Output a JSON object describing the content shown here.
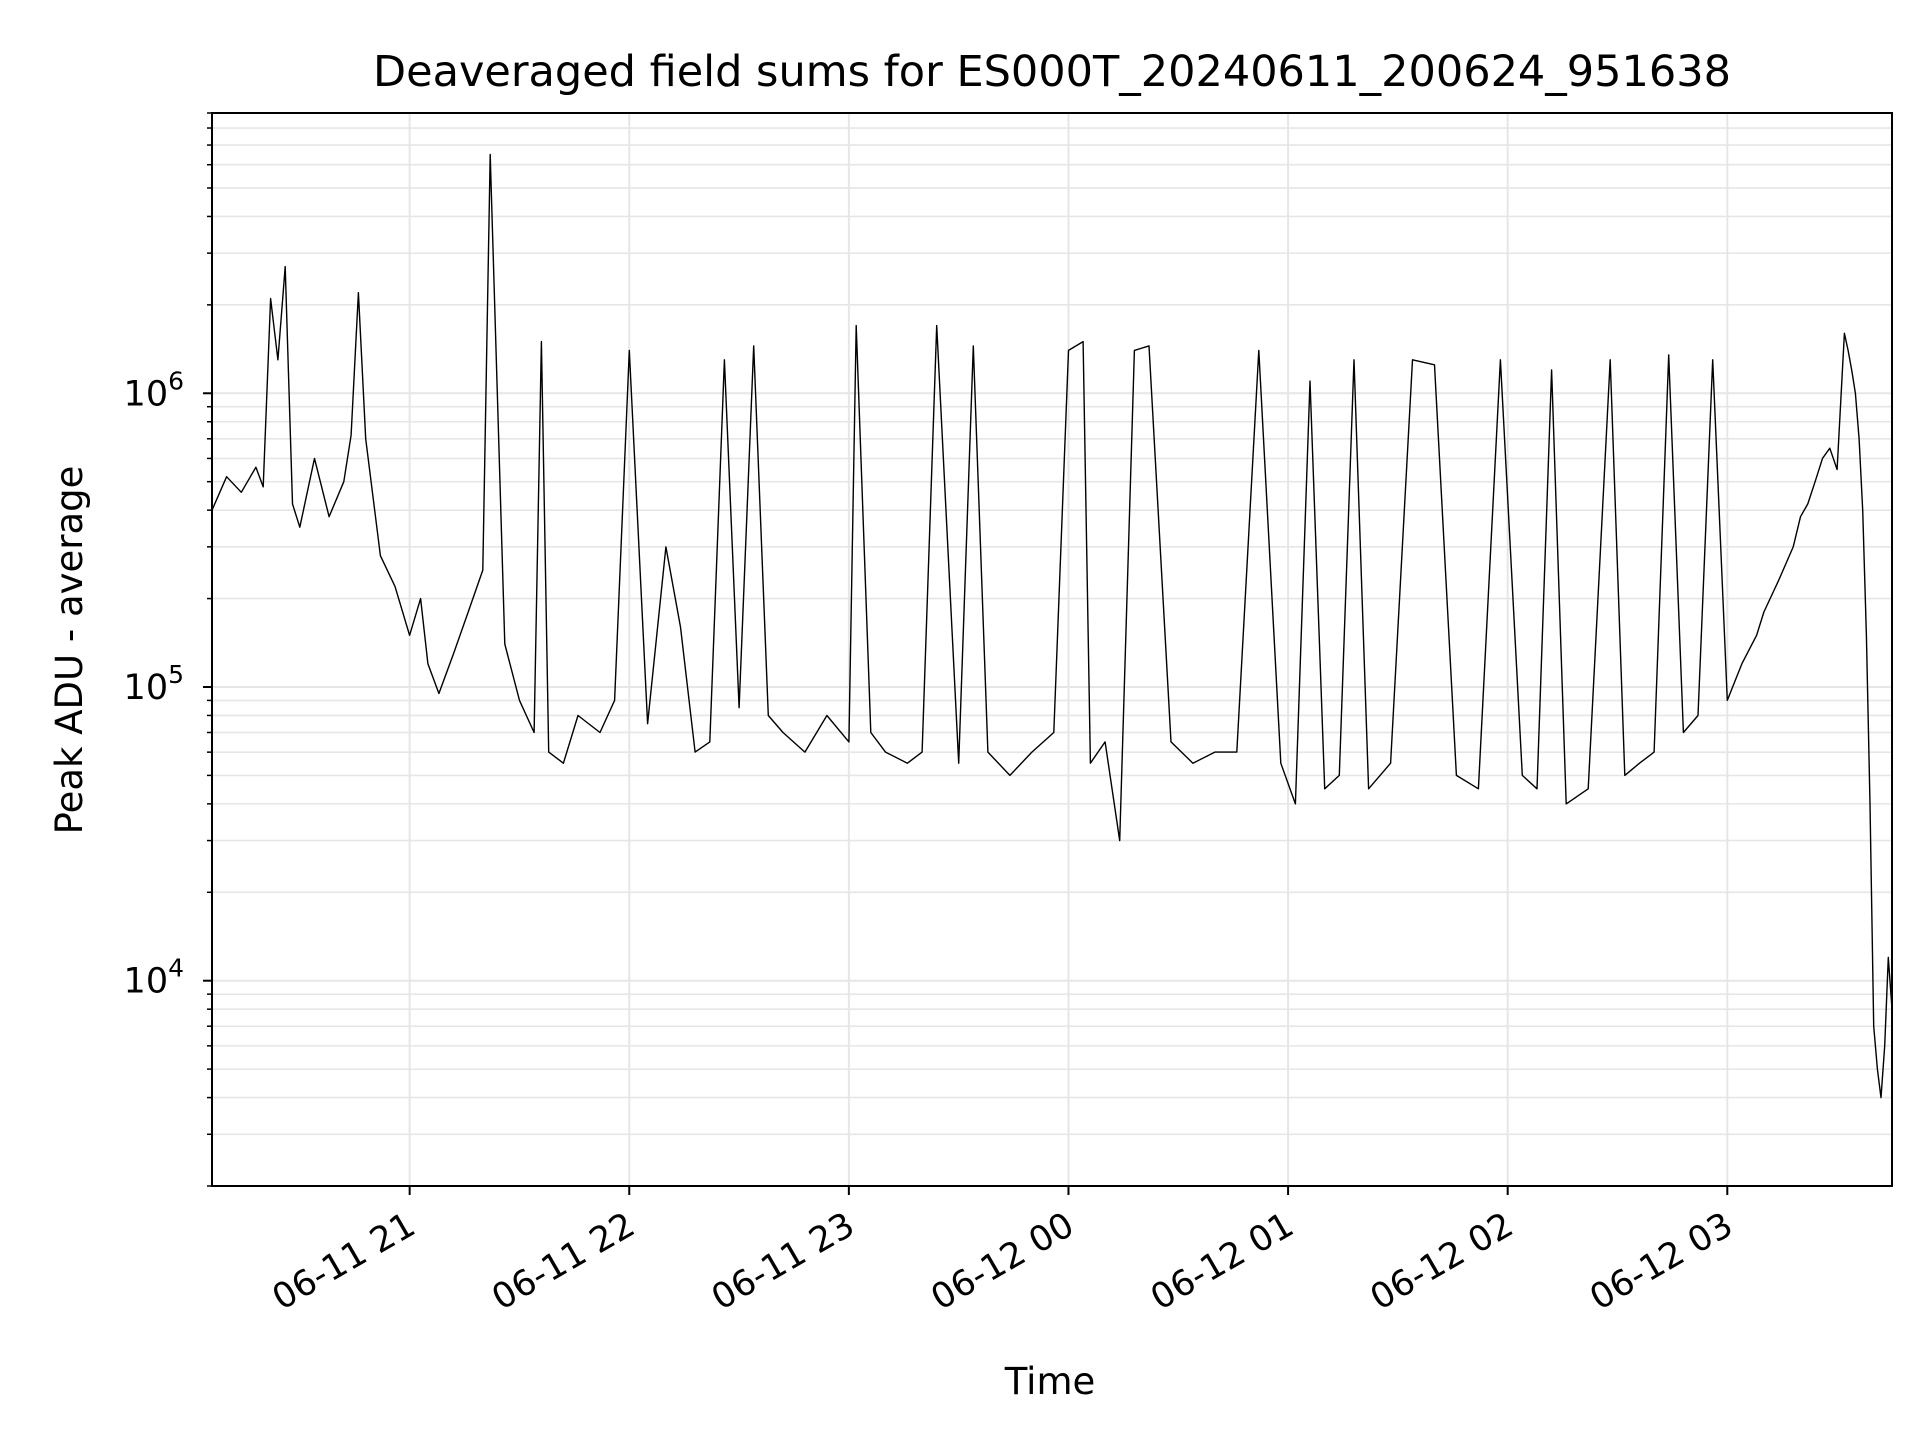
{
  "chart_data": {
    "type": "line",
    "title": "Deaveraged field sums for ES000T_20240611_200624_951638",
    "xlabel": "Time",
    "ylabel": "Peak ADU - average",
    "yscale": "log",
    "grid": true,
    "grid_color": "#e6e6e6",
    "line_color": "#000000",
    "xlim": [
      "2024-06-11 20:06",
      "2024-06-12 03:45"
    ],
    "ylim": [
      2000,
      9000000
    ],
    "x_ticks": [
      {
        "value": "2024-06-11 21:00",
        "label": "06-11 21"
      },
      {
        "value": "2024-06-11 22:00",
        "label": "06-11 22"
      },
      {
        "value": "2024-06-11 23:00",
        "label": "06-11 23"
      },
      {
        "value": "2024-06-12 00:00",
        "label": "06-12 00"
      },
      {
        "value": "2024-06-12 01:00",
        "label": "06-12 01"
      },
      {
        "value": "2024-06-12 02:00",
        "label": "06-12 02"
      },
      {
        "value": "2024-06-12 03:00",
        "label": "06-12 03"
      }
    ],
    "y_ticks": [
      {
        "value": 10000,
        "base": "10",
        "exp": "4"
      },
      {
        "value": 100000,
        "base": "10",
        "exp": "5"
      },
      {
        "value": 1000000,
        "base": "10",
        "exp": "6"
      }
    ],
    "series": [
      {
        "x": [
          "2024-06-11 20:06",
          "2024-06-11 20:10",
          "2024-06-11 20:14",
          "2024-06-11 20:18",
          "2024-06-11 20:20",
          "2024-06-11 20:22",
          "2024-06-11 20:24",
          "2024-06-11 20:26",
          "2024-06-11 20:28",
          "2024-06-11 20:30",
          "2024-06-11 20:34",
          "2024-06-11 20:38",
          "2024-06-11 20:42",
          "2024-06-11 20:44",
          "2024-06-11 20:46",
          "2024-06-11 20:48",
          "2024-06-11 20:52",
          "2024-06-11 20:56",
          "2024-06-11 21:00",
          "2024-06-11 21:03",
          "2024-06-11 21:05",
          "2024-06-11 21:08",
          "2024-06-11 21:12",
          "2024-06-11 21:16",
          "2024-06-11 21:20",
          "2024-06-11 21:22",
          "2024-06-11 21:26",
          "2024-06-11 21:30",
          "2024-06-11 21:34",
          "2024-06-11 21:36",
          "2024-06-11 21:38",
          "2024-06-11 21:42",
          "2024-06-11 21:46",
          "2024-06-11 21:52",
          "2024-06-11 21:56",
          "2024-06-11 22:00",
          "2024-06-11 22:05",
          "2024-06-11 22:10",
          "2024-06-11 22:14",
          "2024-06-11 22:18",
          "2024-06-11 22:22",
          "2024-06-11 22:26",
          "2024-06-11 22:30",
          "2024-06-11 22:34",
          "2024-06-11 22:38",
          "2024-06-11 22:42",
          "2024-06-11 22:48",
          "2024-06-11 22:54",
          "2024-06-11 23:00",
          "2024-06-11 23:02",
          "2024-06-11 23:06",
          "2024-06-11 23:10",
          "2024-06-11 23:16",
          "2024-06-11 23:20",
          "2024-06-11 23:24",
          "2024-06-11 23:30",
          "2024-06-11 23:34",
          "2024-06-11 23:38",
          "2024-06-11 23:44",
          "2024-06-11 23:50",
          "2024-06-11 23:56",
          "2024-06-12 00:00",
          "2024-06-12 00:04",
          "2024-06-12 00:06",
          "2024-06-12 00:10",
          "2024-06-12 00:14",
          "2024-06-12 00:18",
          "2024-06-12 00:22",
          "2024-06-12 00:28",
          "2024-06-12 00:34",
          "2024-06-12 00:40",
          "2024-06-12 00:46",
          "2024-06-12 00:52",
          "2024-06-12 00:58",
          "2024-06-12 01:02",
          "2024-06-12 01:06",
          "2024-06-12 01:10",
          "2024-06-12 01:14",
          "2024-06-12 01:18",
          "2024-06-12 01:22",
          "2024-06-12 01:28",
          "2024-06-12 01:34",
          "2024-06-12 01:40",
          "2024-06-12 01:46",
          "2024-06-12 01:52",
          "2024-06-12 01:58",
          "2024-06-12 02:04",
          "2024-06-12 02:08",
          "2024-06-12 02:12",
          "2024-06-12 02:16",
          "2024-06-12 02:22",
          "2024-06-12 02:28",
          "2024-06-12 02:32",
          "2024-06-12 02:36",
          "2024-06-12 02:40",
          "2024-06-12 02:44",
          "2024-06-12 02:48",
          "2024-06-12 02:52",
          "2024-06-12 02:56",
          "2024-06-12 03:00",
          "2024-06-12 03:04",
          "2024-06-12 03:08",
          "2024-06-12 03:10",
          "2024-06-12 03:14",
          "2024-06-12 03:18",
          "2024-06-12 03:20",
          "2024-06-12 03:22",
          "2024-06-12 03:24",
          "2024-06-12 03:26",
          "2024-06-12 03:28",
          "2024-06-12 03:30",
          "2024-06-12 03:32",
          "2024-06-12 03:33",
          "2024-06-12 03:34",
          "2024-06-12 03:35",
          "2024-06-12 03:36",
          "2024-06-12 03:37",
          "2024-06-12 03:38",
          "2024-06-12 03:39",
          "2024-06-12 03:40",
          "2024-06-12 03:41",
          "2024-06-12 03:42",
          "2024-06-12 03:43",
          "2024-06-12 03:44",
          "2024-06-12 03:45"
        ],
        "values": [
          400000,
          520000,
          460000,
          560000,
          480000,
          2100000,
          1300000,
          2700000,
          420000,
          350000,
          600000,
          380000,
          500000,
          720000,
          2200000,
          700000,
          280000,
          220000,
          150000,
          200000,
          120000,
          95000,
          130000,
          180000,
          250000,
          6500000,
          140000,
          90000,
          70000,
          1500000,
          60000,
          55000,
          80000,
          70000,
          90000,
          1400000,
          75000,
          300000,
          160000,
          60000,
          65000,
          1300000,
          85000,
          1450000,
          80000,
          70000,
          60000,
          80000,
          65000,
          1700000,
          70000,
          60000,
          55000,
          60000,
          1700000,
          55000,
          1450000,
          60000,
          50000,
          60000,
          70000,
          1400000,
          1500000,
          55000,
          65000,
          30000,
          1400000,
          1450000,
          65000,
          55000,
          60000,
          60000,
          1400000,
          55000,
          40000,
          1100000,
          45000,
          50000,
          1300000,
          45000,
          55000,
          1300000,
          1250000,
          50000,
          45000,
          1300000,
          50000,
          45000,
          1200000,
          40000,
          45000,
          1300000,
          50000,
          55000,
          60000,
          1350000,
          70000,
          80000,
          1300000,
          90000,
          120000,
          150000,
          180000,
          230000,
          300000,
          380000,
          420000,
          500000,
          600000,
          650000,
          550000,
          1600000,
          1400000,
          1200000,
          1000000,
          700000,
          400000,
          150000,
          40000,
          7000,
          5000,
          4000,
          6000,
          12000,
          8000
        ]
      }
    ]
  }
}
